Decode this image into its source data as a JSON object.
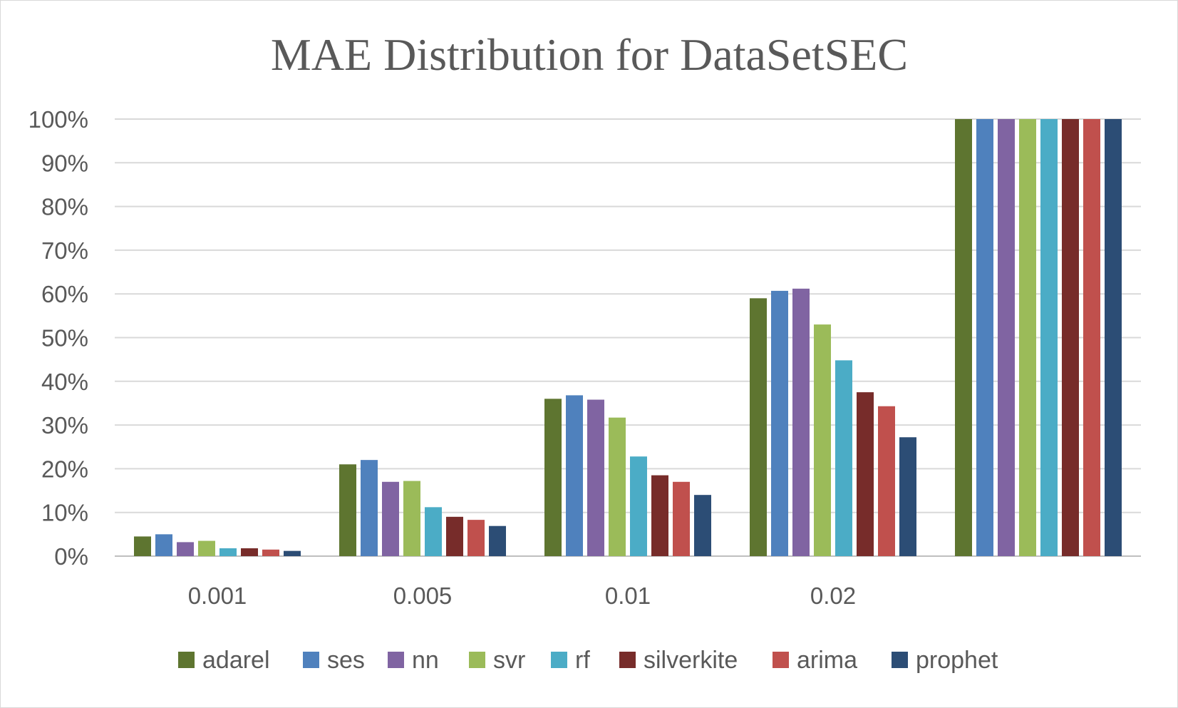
{
  "chart_data": {
    "type": "bar",
    "title": "MAE Distribution for DataSetSEC",
    "xlabel": "",
    "ylabel": "",
    "categories": [
      "0.001",
      "0.005",
      "0.01",
      "0.02",
      ""
    ],
    "ylim": [
      0,
      100
    ],
    "y_ticks": [
      0,
      10,
      20,
      30,
      40,
      50,
      60,
      70,
      80,
      90,
      100
    ],
    "y_tick_labels": [
      "0%",
      "10%",
      "20%",
      "30%",
      "40%",
      "50%",
      "60%",
      "70%",
      "80%",
      "90%",
      "100%"
    ],
    "grid": true,
    "legend_position": "bottom",
    "series": [
      {
        "name": "adarel",
        "color": "#5E7530",
        "values": [
          4.5,
          21,
          36,
          59,
          100
        ]
      },
      {
        "name": "ses",
        "color": "#4F81BD",
        "values": [
          5,
          22,
          36.8,
          60.7,
          100
        ]
      },
      {
        "name": "nn",
        "color": "#8064A2",
        "values": [
          3.2,
          17,
          35.8,
          61.2,
          100
        ]
      },
      {
        "name": "svr",
        "color": "#9BBB59",
        "values": [
          3.5,
          17.2,
          31.7,
          53,
          100
        ]
      },
      {
        "name": "rf",
        "color": "#4BACC6",
        "values": [
          1.8,
          11.2,
          22.8,
          44.8,
          100
        ]
      },
      {
        "name": "silverkite",
        "color": "#772C2A",
        "values": [
          1.8,
          9,
          18.5,
          37.5,
          100
        ]
      },
      {
        "name": "arima",
        "color": "#C0504D",
        "values": [
          1.5,
          8.3,
          17,
          34.3,
          100
        ]
      },
      {
        "name": "prophet",
        "color": "#2C4D75",
        "values": [
          1.2,
          6.9,
          14,
          27.2,
          100
        ]
      }
    ]
  }
}
